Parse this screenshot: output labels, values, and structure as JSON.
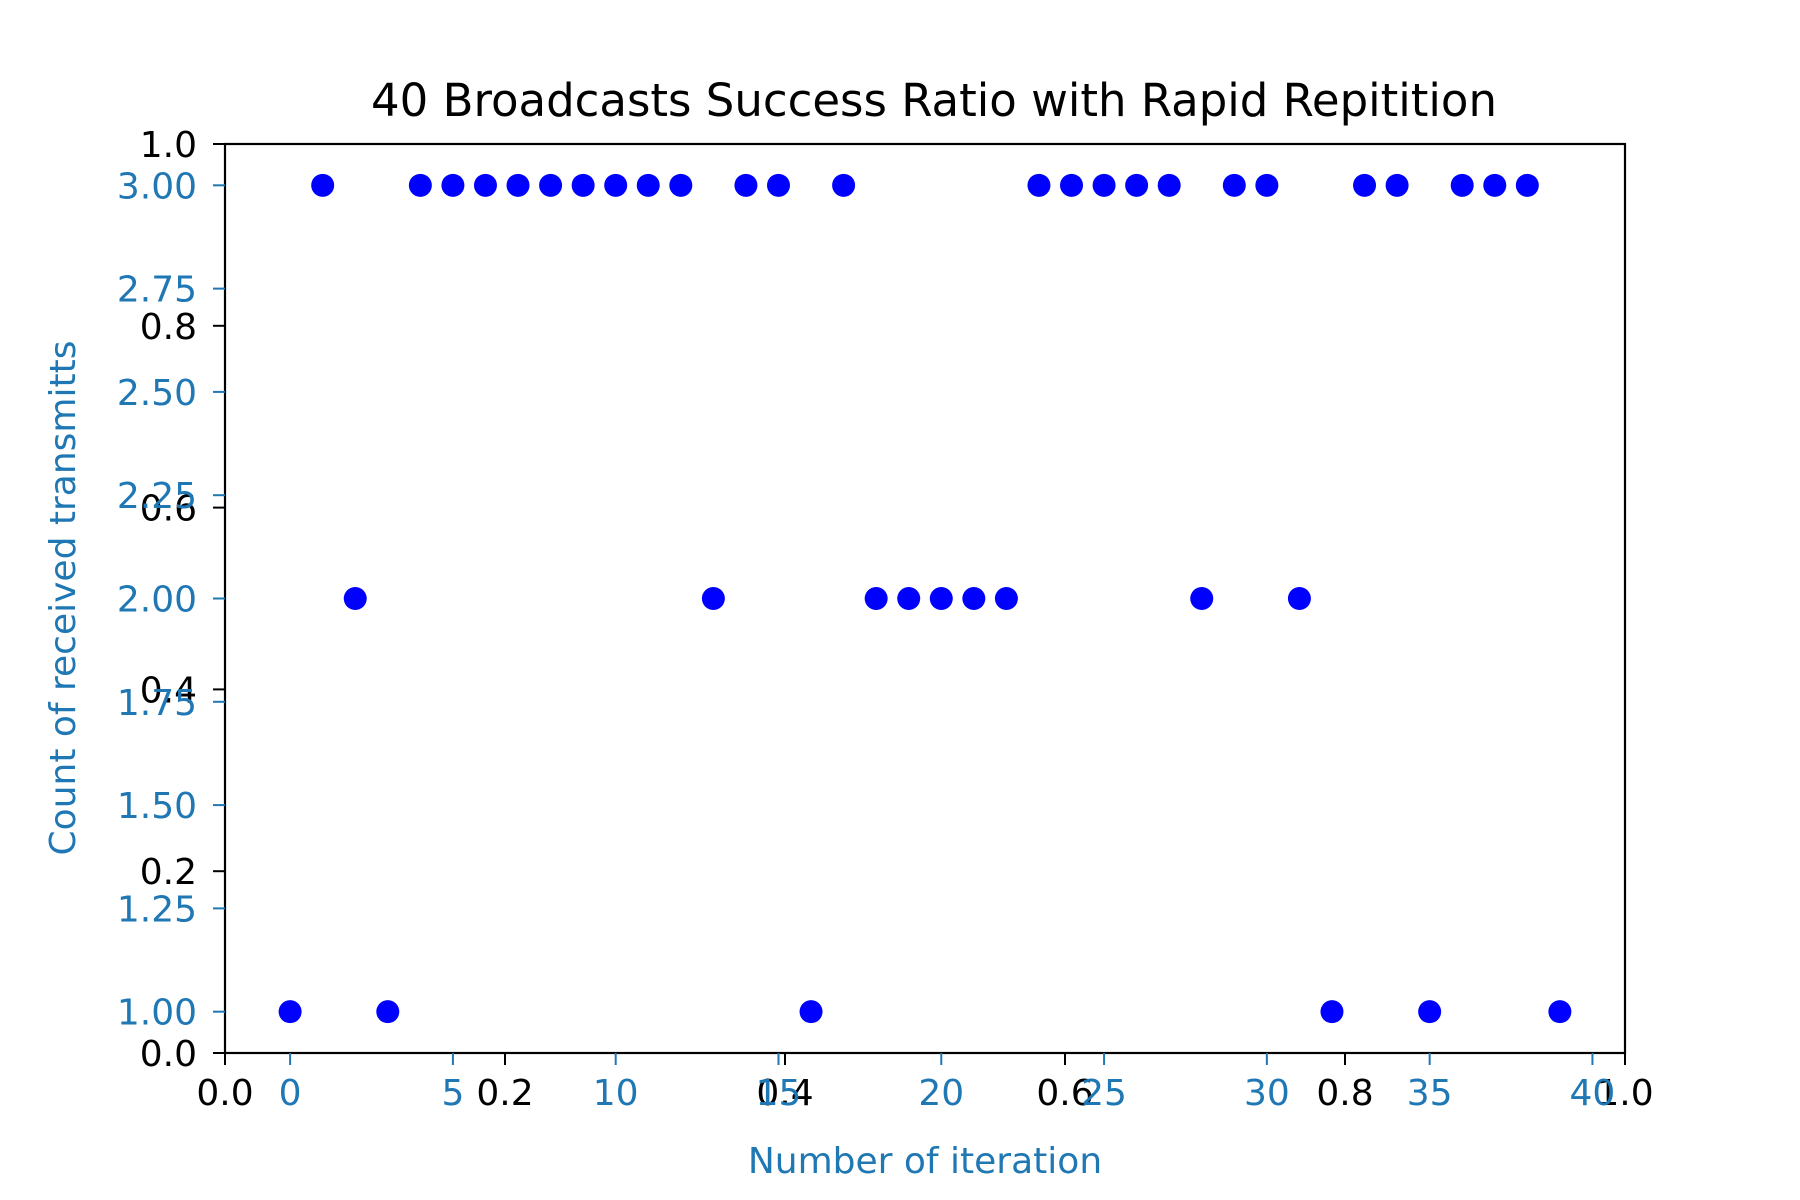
{
  "chart_data": {
    "type": "scatter",
    "title": "40 Broadcasts Success Ratio with Rapid Repitition",
    "xlabel": "Number of iteration",
    "ylabel": "Count of received transmitts",
    "xlim": [
      -2,
      41
    ],
    "ylim": [
      0.9,
      3.1
    ],
    "xticks": [
      "0",
      "5",
      "10",
      "15",
      "20",
      "25",
      "30",
      "35",
      "40"
    ],
    "xtick_values": [
      0,
      5,
      10,
      15,
      20,
      25,
      30,
      35,
      40
    ],
    "yticks": [
      "1.00",
      "1.25",
      "1.50",
      "1.75",
      "2.00",
      "2.25",
      "2.50",
      "2.75",
      "3.00"
    ],
    "ytick_values": [
      1.0,
      1.25,
      1.5,
      1.75,
      2.0,
      2.25,
      2.5,
      2.75,
      3.0
    ],
    "overlay_axes": {
      "xlim": [
        0,
        1
      ],
      "ylim": [
        0,
        1
      ],
      "xticks": [
        "0.0",
        "0.2",
        "0.4",
        "0.6",
        "0.8",
        "1.0"
      ],
      "xtick_values": [
        0.0,
        0.2,
        0.4,
        0.6,
        0.8,
        1.0
      ],
      "yticks": [
        "0.0",
        "0.2",
        "0.4",
        "0.6",
        "0.8",
        "1.0"
      ],
      "ytick_values": [
        0.0,
        0.2,
        0.4,
        0.6,
        0.8,
        1.0
      ]
    },
    "series": [
      {
        "x": [
          0,
          1,
          2,
          3,
          4,
          5,
          6,
          7,
          8,
          9,
          10,
          11,
          12,
          13,
          14,
          15,
          16,
          17,
          18,
          19,
          20,
          21,
          22,
          23,
          24,
          25,
          26,
          27,
          28,
          29,
          30,
          31,
          32,
          33,
          34,
          35,
          36,
          37,
          38,
          39
        ],
        "y": [
          1,
          3,
          2,
          1,
          3,
          3,
          3,
          3,
          3,
          3,
          3,
          3,
          3,
          2,
          3,
          3,
          1,
          3,
          2,
          2,
          2,
          2,
          2,
          3,
          3,
          3,
          3,
          3,
          2,
          3,
          3,
          2,
          1,
          3,
          3,
          1,
          3,
          3,
          3,
          1
        ]
      }
    ],
    "colors": {
      "marker": "#0000ff",
      "axis_blue": "#1f77b4",
      "axis_black": "#000000"
    },
    "grid": false,
    "legend": "none"
  }
}
